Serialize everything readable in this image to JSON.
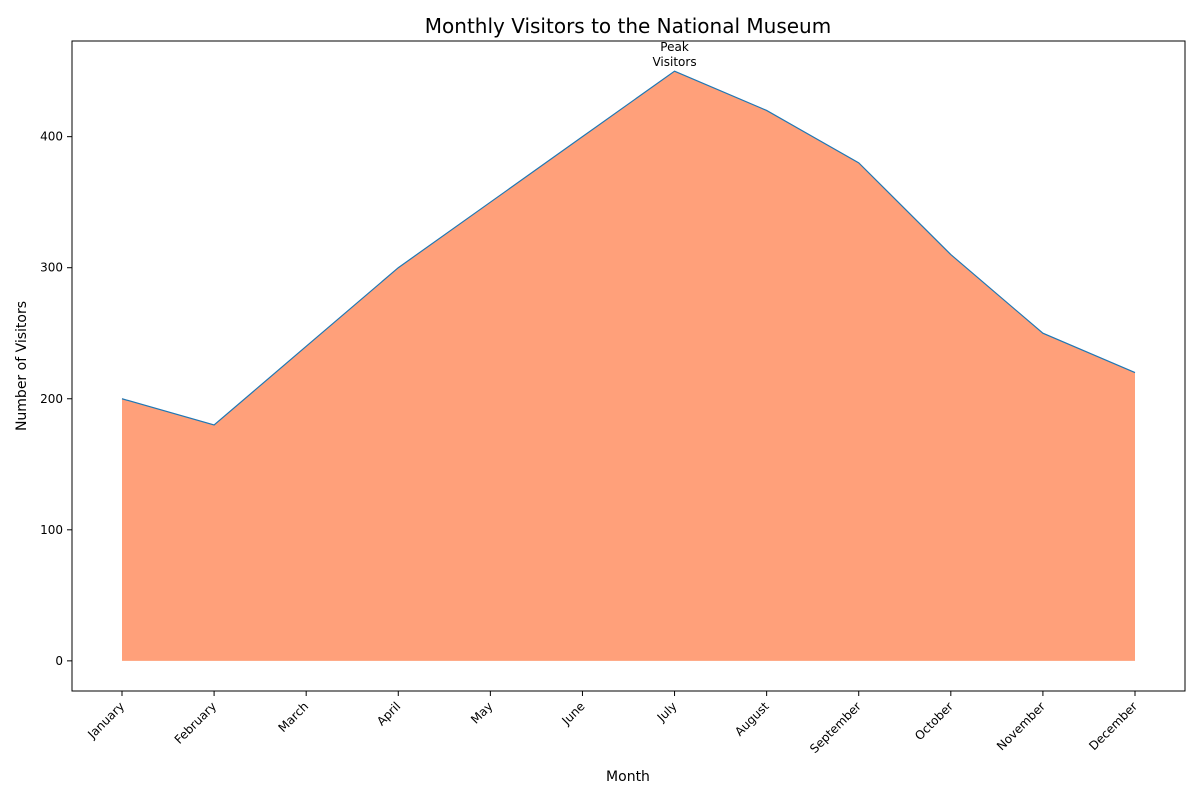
{
  "chart_data": {
    "type": "area",
    "title": "Monthly Visitors to the National Museum",
    "xlabel": "Month",
    "ylabel": "Number of Visitors",
    "categories": [
      "January",
      "February",
      "March",
      "April",
      "May",
      "June",
      "July",
      "August",
      "September",
      "October",
      "November",
      "December"
    ],
    "values": [
      200,
      180,
      240,
      300,
      350,
      400,
      450,
      420,
      380,
      310,
      250,
      220
    ],
    "ylim": [
      -23,
      473
    ],
    "yticks": [
      0,
      100,
      200,
      300,
      400
    ],
    "fill_color": "#FFA07A",
    "line_color": "#1f77b4",
    "annotation": {
      "text_lines": [
        "Peak",
        "Visitors"
      ],
      "category": "July",
      "value": 450
    },
    "grid": false,
    "legend": "none"
  }
}
